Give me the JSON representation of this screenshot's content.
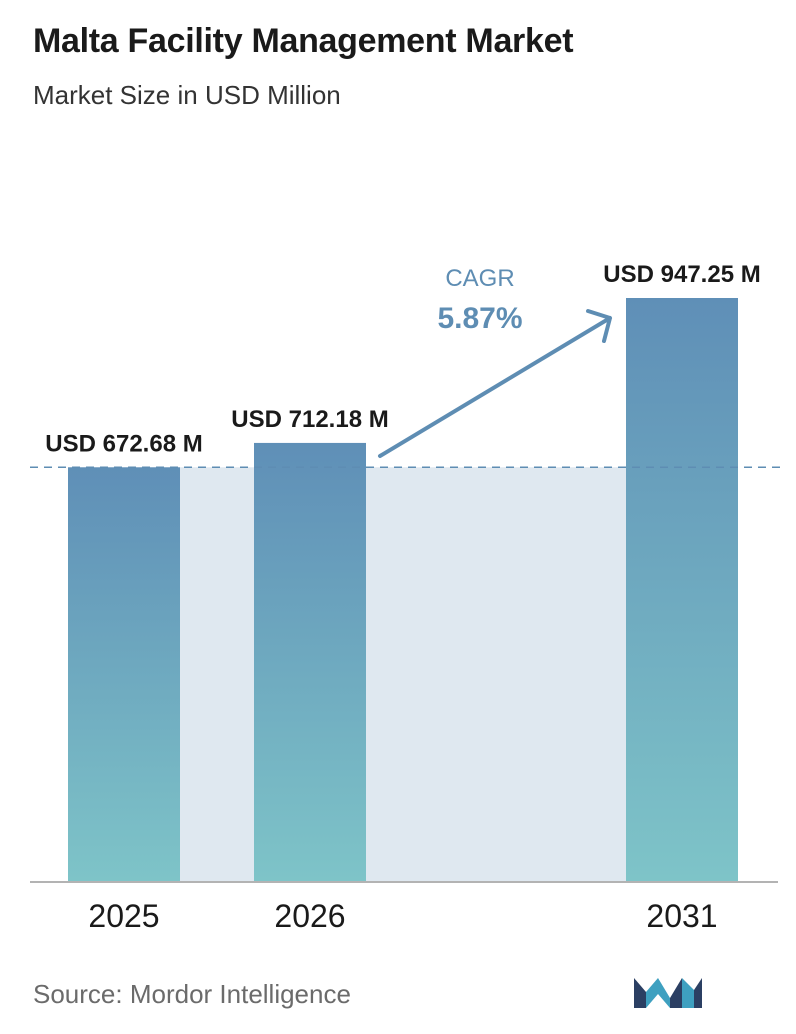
{
  "header": {
    "title": "Malta Facility Management Market",
    "subtitle": "Market Size in USD Million"
  },
  "chart_data": {
    "type": "bar",
    "categories": [
      "2025",
      "2026",
      "2031"
    ],
    "values": [
      672.68,
      712.18,
      947.25
    ],
    "value_labels": [
      "USD 672.68 M",
      "USD 712.18 M",
      "USD 947.25 M"
    ],
    "title": "Malta Facility Management Market",
    "subtitle": "Market Size in USD Million",
    "xlabel": "",
    "ylabel": "",
    "ylim": [
      0,
      1000
    ],
    "grid": false,
    "annotations": {
      "cagr_label": "CAGR",
      "cagr_value": "5.87%"
    },
    "colors": {
      "bar_top": "#5f8fb7",
      "bar_bottom": "#7ec4c8",
      "band": "#dfe8f0",
      "accent": "#5e8db3",
      "axis": "#b3b3b3"
    }
  },
  "footer": {
    "source": "Source:  Mordor Intelligence",
    "logo_icon": "mordor-intelligence-logo-icon"
  }
}
